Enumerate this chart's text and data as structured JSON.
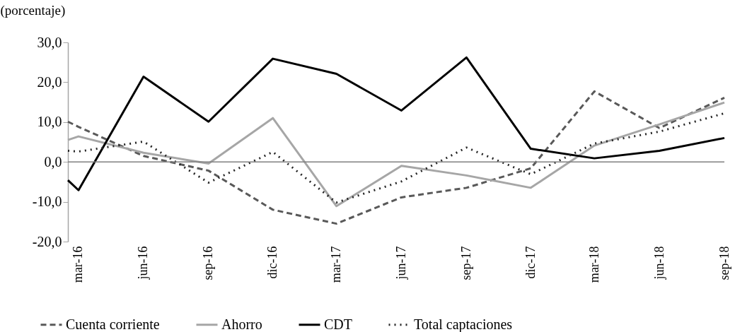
{
  "chart_data": {
    "type": "line",
    "ylabel": "(porcentaje)",
    "x": [
      "2016-02-15",
      "2016-03",
      "2016-06",
      "2016-09",
      "2016-12",
      "2017-03",
      "2017-06",
      "2017-09",
      "2017-12",
      "2018-03",
      "2018-06",
      "2018-09"
    ],
    "xlim": [
      "2016-02-15",
      "2018-09"
    ],
    "xticks": [
      {
        "value": "2016-03",
        "label": "mar-16"
      },
      {
        "value": "2016-06",
        "label": "jun-16"
      },
      {
        "value": "2016-09",
        "label": "sep-16"
      },
      {
        "value": "2016-12",
        "label": "dic-16"
      },
      {
        "value": "2017-03",
        "label": "mar-17"
      },
      {
        "value": "2017-06",
        "label": "jun-17"
      },
      {
        "value": "2017-09",
        "label": "sep-17"
      },
      {
        "value": "2017-12",
        "label": "dic-17"
      },
      {
        "value": "2018-03",
        "label": "mar-18"
      },
      {
        "value": "2018-06",
        "label": "jun-18"
      },
      {
        "value": "2018-09",
        "label": "sep-18"
      }
    ],
    "ylim": [
      -20,
      30
    ],
    "yticks": [
      {
        "value": -20,
        "label": "-20,0"
      },
      {
        "value": -10,
        "label": "-10,0"
      },
      {
        "value": 0,
        "label": "0,0"
      },
      {
        "value": 10,
        "label": "10,0"
      },
      {
        "value": 20,
        "label": "20,0"
      },
      {
        "value": 30,
        "label": "30,0"
      }
    ],
    "series": [
      {
        "name": "Cuenta corriente",
        "color": "#595959",
        "line_style": "dashed",
        "values": [
          10.1,
          8.8,
          1.5,
          -2.2,
          -12,
          -15.5,
          -8.9,
          -6.5,
          -1.6,
          17.7,
          8.5,
          16.1
        ]
      },
      {
        "name": "Ahorro",
        "color": "#a6a6a6",
        "line_style": "solid",
        "values": [
          5.5,
          6.4,
          2.3,
          -0.4,
          11.0,
          -11.1,
          -1.0,
          -3.4,
          -6.5,
          4.1,
          9.4,
          14.9
        ]
      },
      {
        "name": "CDT",
        "color": "#000000",
        "line_style": "solid",
        "values": [
          -4.6,
          -7.1,
          21.4,
          10.1,
          25.9,
          22.1,
          12.9,
          26.2,
          3.3,
          0.9,
          2.8,
          6.0
        ]
      },
      {
        "name": "Total captaciones",
        "color": "#262626",
        "line_style": "dotted",
        "values": [
          2.8,
          2.6,
          5.1,
          -5.2,
          2.5,
          -10.2,
          -4.9,
          3.6,
          -3.1,
          4.6,
          7.6,
          12.2
        ]
      }
    ],
    "ref_lines": [
      {
        "axis": "y",
        "value": 0,
        "color": "#808080"
      }
    ],
    "grid": false,
    "legend": "bottom"
  }
}
